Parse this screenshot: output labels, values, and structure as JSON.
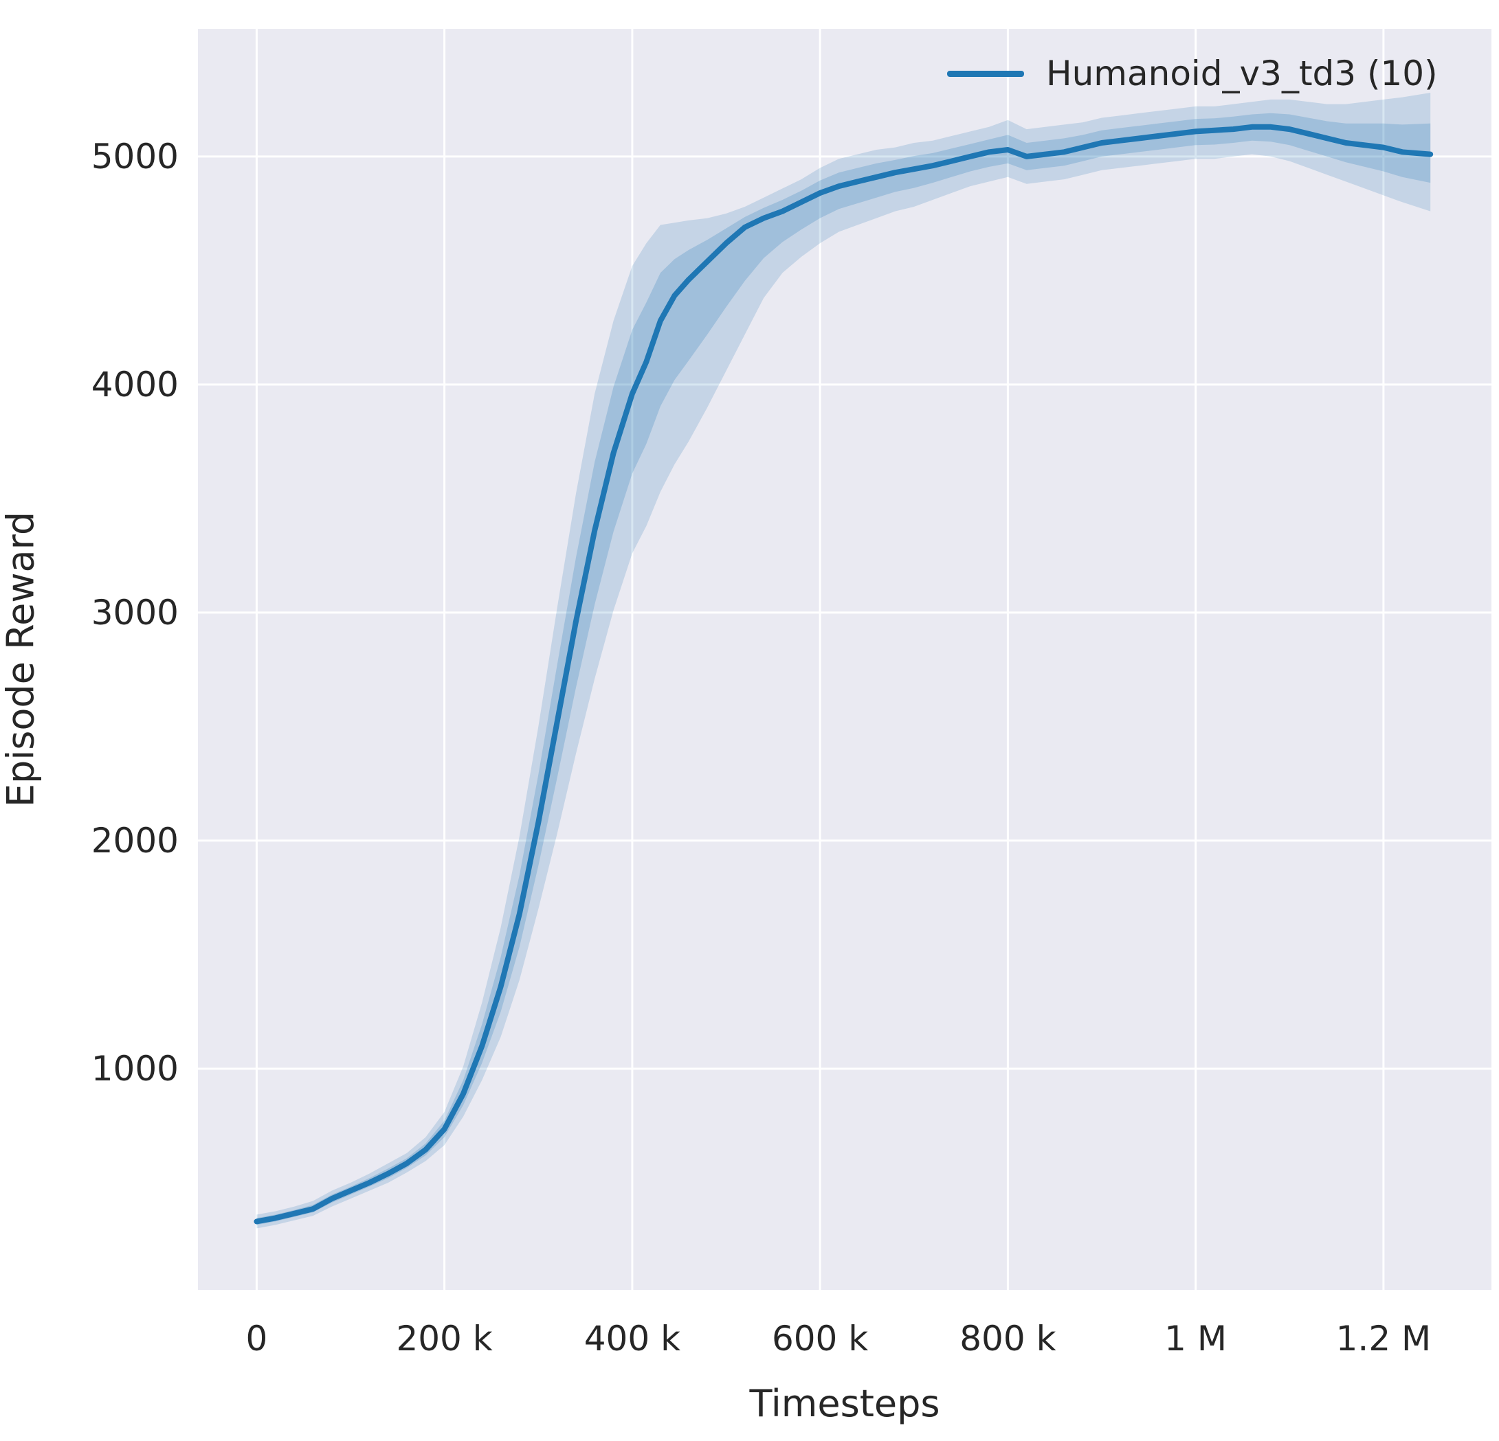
{
  "figure": {
    "background": "#ffffff",
    "plot_background": "#eaeaf2",
    "grid_color": "#ffffff",
    "text_color": "#262626"
  },
  "axes": {
    "xlabel": "Timesteps",
    "ylabel": "Episode Reward"
  },
  "legend": {
    "label": "Humanoid_v3_td3 (10)",
    "color": "#1f77b4"
  },
  "chart_data": {
    "type": "line",
    "title": "",
    "xlabel": "Timesteps",
    "ylabel": "Episode Reward",
    "legend_entries": [
      "Humanoid_v3_td3 (10)"
    ],
    "legend_position": "upper right",
    "grid": true,
    "line_color": "#1f77b4",
    "band_color": "#1f77b4",
    "x_domain": [
      -62500,
      1315000
    ],
    "y_domain": [
      30,
      5560
    ],
    "x_ticks": [
      {
        "v": 0,
        "label": "0"
      },
      {
        "v": 200000,
        "label": "200 k"
      },
      {
        "v": 400000,
        "label": "400 k"
      },
      {
        "v": 600000,
        "label": "600 k"
      },
      {
        "v": 800000,
        "label": "800 k"
      },
      {
        "v": 1000000,
        "label": "1 M"
      },
      {
        "v": 1200000,
        "label": "1.2 M"
      }
    ],
    "y_ticks": [
      {
        "v": 1000,
        "label": "1000"
      },
      {
        "v": 2000,
        "label": "2000"
      },
      {
        "v": 3000,
        "label": "3000"
      },
      {
        "v": 4000,
        "label": "4000"
      },
      {
        "v": 5000,
        "label": "5000"
      }
    ],
    "series": [
      {
        "name": "Humanoid_v3_td3 (10)",
        "x": [
          0,
          20000,
          40000,
          60000,
          80000,
          100000,
          120000,
          140000,
          160000,
          180000,
          200000,
          220000,
          240000,
          260000,
          280000,
          300000,
          320000,
          340000,
          360000,
          380000,
          400000,
          415000,
          430000,
          445000,
          460000,
          480000,
          500000,
          520000,
          540000,
          560000,
          580000,
          600000,
          620000,
          640000,
          660000,
          680000,
          700000,
          720000,
          740000,
          760000,
          780000,
          800000,
          820000,
          840000,
          860000,
          880000,
          900000,
          920000,
          940000,
          960000,
          980000,
          1000000,
          1020000,
          1040000,
          1060000,
          1080000,
          1100000,
          1120000,
          1140000,
          1160000,
          1180000,
          1200000,
          1220000,
          1250000
        ],
        "mean": [
          330,
          345,
          365,
          385,
          430,
          465,
          500,
          540,
          585,
          645,
          735,
          890,
          1100,
          1360,
          1680,
          2080,
          2520,
          2960,
          3360,
          3700,
          3960,
          4100,
          4280,
          4390,
          4460,
          4540,
          4620,
          4690,
          4730,
          4760,
          4800,
          4840,
          4870,
          4890,
          4910,
          4930,
          4945,
          4960,
          4980,
          5000,
          5020,
          5030,
          5000,
          5010,
          5020,
          5040,
          5060,
          5070,
          5080,
          5090,
          5100,
          5110,
          5115,
          5120,
          5130,
          5130,
          5120,
          5100,
          5080,
          5060,
          5050,
          5040,
          5020,
          5010
        ],
        "lo": [
          300,
          315,
          335,
          355,
          395,
          430,
          465,
          500,
          545,
          595,
          665,
          790,
          950,
          1140,
          1390,
          1700,
          2030,
          2380,
          2710,
          3010,
          3260,
          3380,
          3530,
          3650,
          3750,
          3900,
          4060,
          4220,
          4380,
          4490,
          4560,
          4620,
          4670,
          4700,
          4730,
          4760,
          4780,
          4810,
          4840,
          4870,
          4890,
          4910,
          4880,
          4890,
          4900,
          4920,
          4940,
          4950,
          4960,
          4970,
          4980,
          4990,
          4990,
          5000,
          5010,
          5000,
          4980,
          4950,
          4920,
          4890,
          4860,
          4830,
          4800,
          4760
        ],
        "hi": [
          360,
          375,
          395,
          420,
          465,
          500,
          540,
          585,
          630,
          700,
          810,
          1010,
          1290,
          1620,
          2020,
          2500,
          3020,
          3520,
          3960,
          4280,
          4520,
          4620,
          4700,
          4710,
          4720,
          4730,
          4750,
          4780,
          4820,
          4860,
          4900,
          4950,
          4990,
          5010,
          5030,
          5040,
          5060,
          5070,
          5090,
          5110,
          5130,
          5160,
          5120,
          5130,
          5140,
          5150,
          5170,
          5180,
          5190,
          5200,
          5210,
          5220,
          5220,
          5230,
          5240,
          5250,
          5250,
          5240,
          5230,
          5230,
          5240,
          5250,
          5260,
          5280
        ]
      }
    ]
  }
}
